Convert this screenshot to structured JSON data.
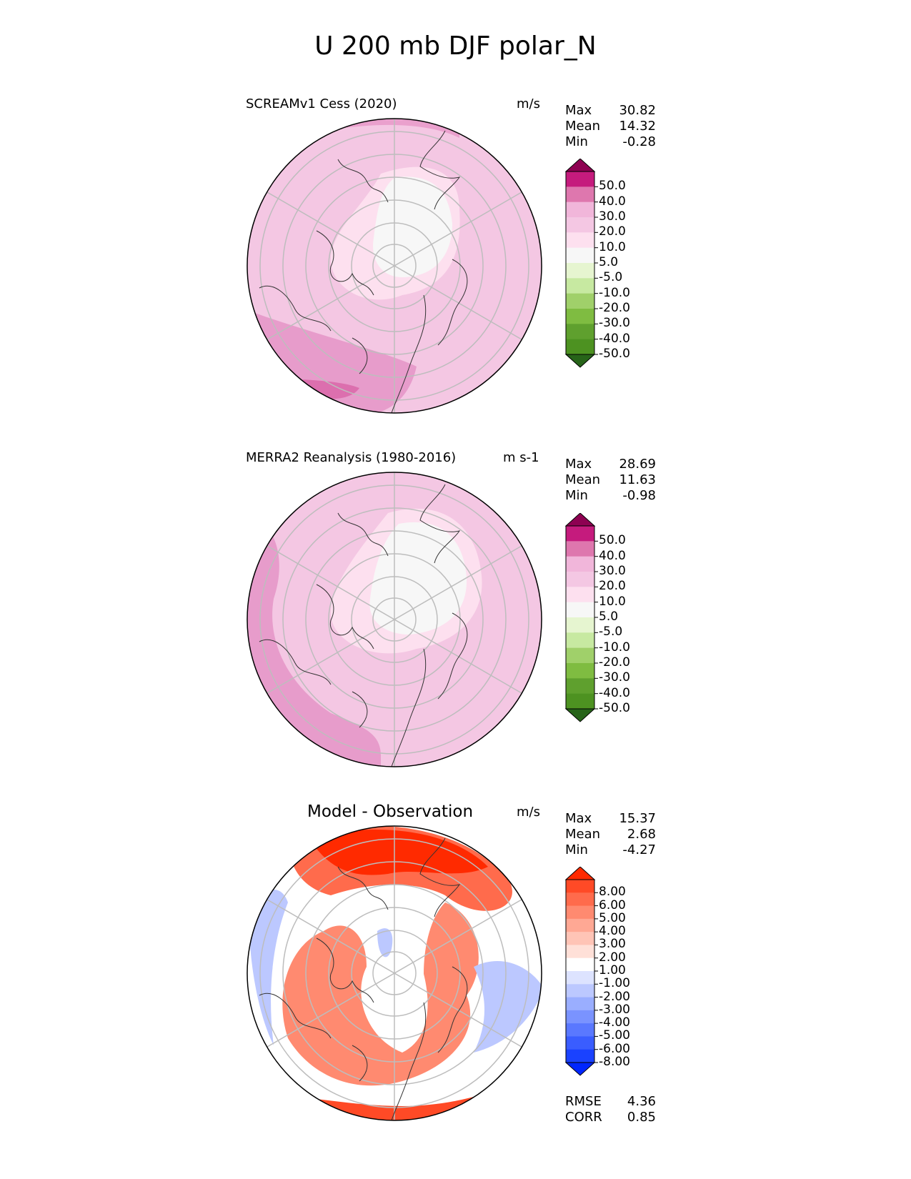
{
  "figure": {
    "title": "U 200 mb DJF polar_N"
  },
  "panels": [
    {
      "title": "SCREAMv1 Cess (2020)",
      "units": "m/s",
      "stats": [
        {
          "label": "Max",
          "value": "30.82"
        },
        {
          "label": "Mean",
          "value": "14.32"
        },
        {
          "label": "Min",
          "value": "-0.28"
        }
      ]
    },
    {
      "title": "MERRA2 Reanalysis (1980-2016)",
      "units": "m s-1",
      "stats": [
        {
          "label": "Max",
          "value": "28.69"
        },
        {
          "label": "Mean",
          "value": "11.63"
        },
        {
          "label": "Min",
          "value": "-0.98"
        }
      ]
    },
    {
      "title": "Model - Observation",
      "units": "m/s",
      "stats": [
        {
          "label": "Max",
          "value": "15.37"
        },
        {
          "label": "Mean",
          "value": "2.68"
        },
        {
          "label": "Min",
          "value": "-4.27"
        }
      ],
      "extra_stats": [
        {
          "label": "RMSE",
          "value": "4.36"
        },
        {
          "label": "CORR",
          "value": "0.85"
        }
      ]
    }
  ],
  "colorbars": {
    "field": {
      "ticks": [
        "50.0",
        "40.0",
        "30.0",
        "20.0",
        "10.0",
        "5.0",
        "-5.0",
        "-10.0",
        "-20.0",
        "-30.0",
        "-40.0",
        "-50.0"
      ],
      "colors": [
        "#8e0152",
        "#c51b7d",
        "#de77ae",
        "#f1b6da",
        "#f4c7e3",
        "#fde0ef",
        "#f7f7f7",
        "#e6f5d0",
        "#c7e9a1",
        "#a0d06a",
        "#7fbc41",
        "#5fa02e",
        "#4d9221",
        "#276419"
      ]
    },
    "diff": {
      "ticks": [
        "8.00",
        "6.00",
        "5.00",
        "4.00",
        "3.00",
        "2.00",
        "1.00",
        "-1.00",
        "-2.00",
        "-3.00",
        "-4.00",
        "-5.00",
        "-6.00",
        "-8.00"
      ],
      "colors": [
        "#ff2a00",
        "#ff4a26",
        "#ff6b4c",
        "#ff8a70",
        "#ffa894",
        "#ffc4b6",
        "#ffe0d8",
        "#ffffff",
        "#dde3ff",
        "#bcc8ff",
        "#9aaeff",
        "#7a93ff",
        "#5a78ff",
        "#3a5dff",
        "#1a42ff",
        "#0026ff"
      ]
    }
  },
  "chart_data": [
    {
      "type": "heatmap",
      "title": "SCREAMv1 Cess (2020)",
      "projection": "north polar stereographic",
      "variable": "U 200 mb DJF",
      "units": "m/s",
      "levels": [
        -50,
        -40,
        -30,
        -20,
        -10,
        -5,
        5,
        10,
        20,
        30,
        40,
        50
      ],
      "stats": {
        "max": 30.82,
        "mean": 14.32,
        "min": -0.28
      }
    },
    {
      "type": "heatmap",
      "title": "MERRA2 Reanalysis (1980-2016)",
      "projection": "north polar stereographic",
      "variable": "U 200 mb DJF",
      "units": "m s-1",
      "levels": [
        -50,
        -40,
        -30,
        -20,
        -10,
        -5,
        5,
        10,
        20,
        30,
        40,
        50
      ],
      "stats": {
        "max": 28.69,
        "mean": 11.63,
        "min": -0.98
      }
    },
    {
      "type": "heatmap",
      "title": "Model - Observation",
      "projection": "north polar stereographic",
      "units": "m/s",
      "levels": [
        -8,
        -6,
        -5,
        -4,
        -3,
        -2,
        -1,
        1,
        2,
        3,
        4,
        5,
        6,
        8
      ],
      "stats": {
        "max": 15.37,
        "mean": 2.68,
        "min": -4.27,
        "rmse": 4.36,
        "corr": 0.85
      }
    }
  ]
}
